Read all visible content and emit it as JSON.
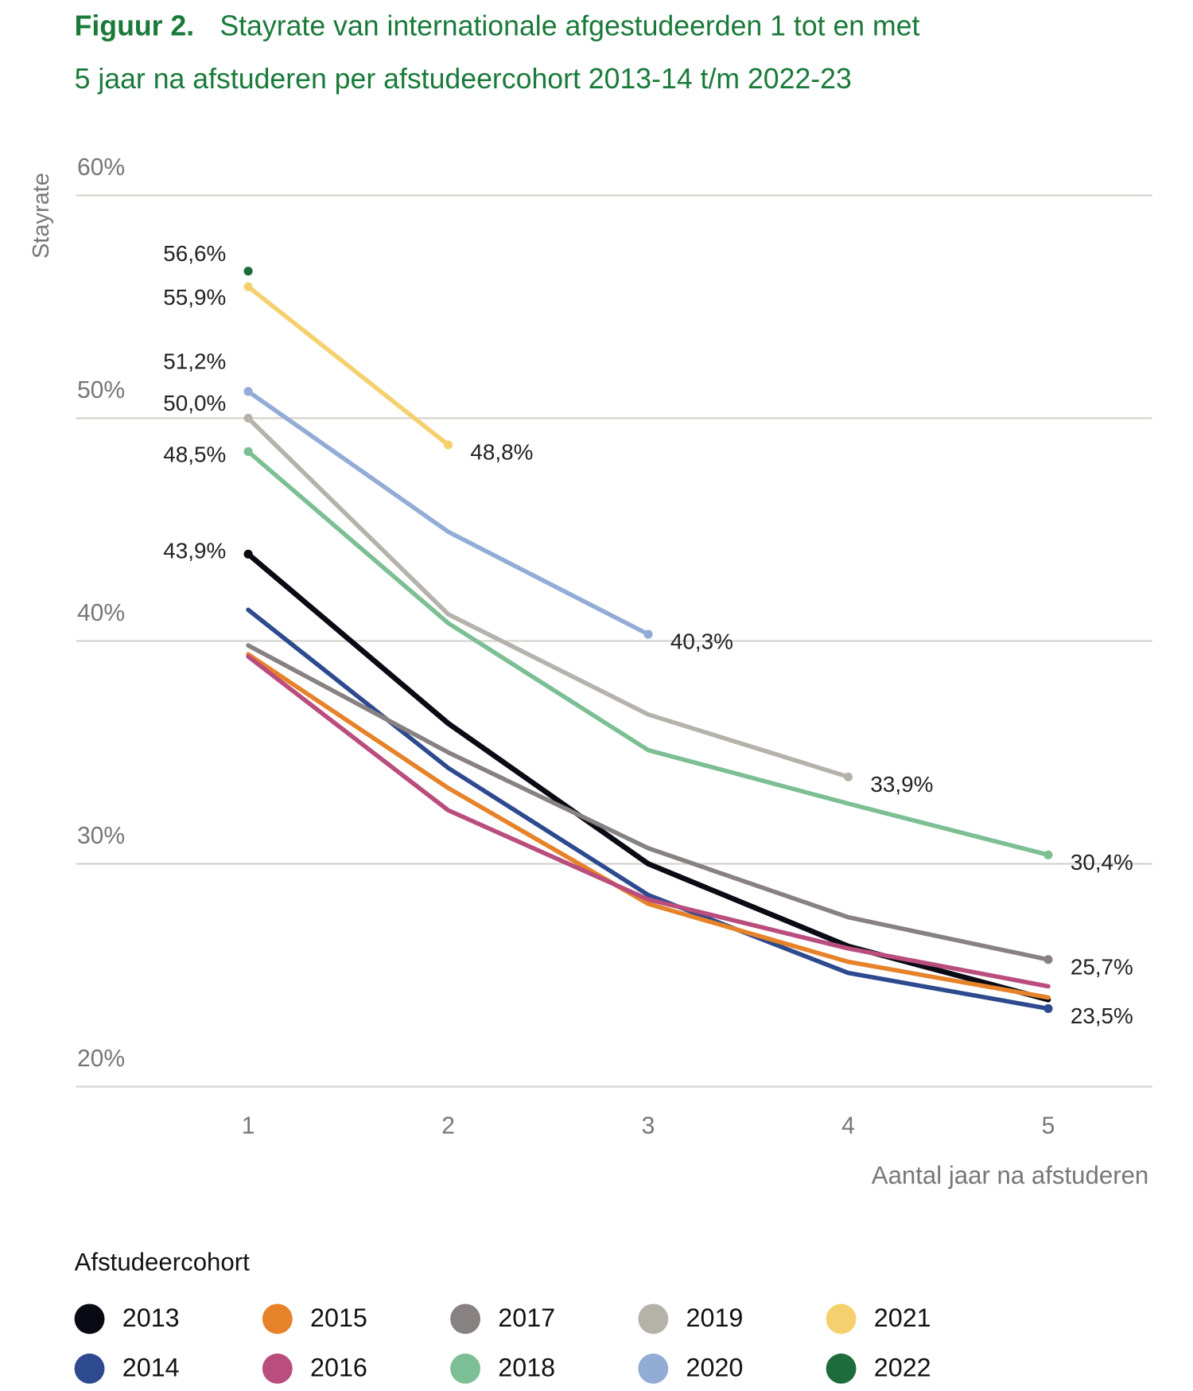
{
  "chart_data": {
    "type": "line",
    "figure_label": "Figuur 2.",
    "title": [
      "Stayrate van internationale afgestudeerden 1 tot en met",
      "5 jaar na afstuderen per afstudeercohort 2013-14 t/m 2022-23"
    ],
    "y_label": "Stayrate",
    "x_label": "Aantal jaar na afstuderen",
    "legend_title": "Afstudeercohort",
    "x": [
      1,
      2,
      3,
      4,
      5
    ],
    "xticks": [
      1,
      2,
      3,
      4,
      5
    ],
    "xlim": [
      0.14,
      5.52
    ],
    "ylim": [
      20,
      60
    ],
    "yticks": [
      {
        "value": 20,
        "label": "20%"
      },
      {
        "value": 30,
        "label": "30%"
      },
      {
        "value": 40,
        "label": "40%"
      },
      {
        "value": 50,
        "label": "50%"
      },
      {
        "value": 60,
        "label": "60%"
      }
    ],
    "grid": true,
    "series": [
      {
        "name": "2013",
        "color": "#0a0a14",
        "values": [
          43.9,
          36.3,
          30.0,
          26.3,
          23.9
        ],
        "value_labels": [
          "43,9%",
          null,
          null,
          null,
          null
        ]
      },
      {
        "name": "2014",
        "color": "#2e4a8e",
        "values": [
          41.4,
          34.3,
          28.6,
          25.1,
          23.5
        ],
        "value_labels": [
          null,
          null,
          null,
          null,
          "23,5%"
        ]
      },
      {
        "name": "2015",
        "color": "#e6822a",
        "values": [
          39.4,
          33.4,
          28.2,
          25.6,
          24.0
        ]
      },
      {
        "name": "2016",
        "color": "#b94d7e",
        "values": [
          39.3,
          32.4,
          28.4,
          26.2,
          24.5
        ]
      },
      {
        "name": "2017",
        "color": "#878281",
        "values": [
          39.8,
          35.0,
          30.7,
          27.6,
          25.7
        ],
        "value_labels": [
          null,
          null,
          null,
          null,
          "25,7%"
        ]
      },
      {
        "name": "2018",
        "color": "#7dbf94",
        "values": [
          48.5,
          40.8,
          35.1,
          32.7,
          30.4
        ],
        "value_labels": [
          "48,5%",
          null,
          null,
          null,
          "30,4%"
        ]
      },
      {
        "name": "2019",
        "color": "#b5b2aa",
        "values": [
          50.0,
          41.2,
          36.7,
          33.9,
          null
        ],
        "value_labels": [
          "50,0%",
          null,
          null,
          "33,9%",
          null
        ]
      },
      {
        "name": "2020",
        "color": "#93acd6",
        "values": [
          51.2,
          44.9,
          40.3,
          null,
          null
        ],
        "value_labels": [
          "51,2%",
          null,
          "40,3%",
          null,
          null
        ]
      },
      {
        "name": "2021",
        "color": "#f4d06f",
        "values": [
          55.9,
          48.8,
          null,
          null,
          null
        ],
        "value_labels": [
          "55,9%",
          "48,8%",
          null,
          null,
          null
        ]
      },
      {
        "name": "2022",
        "color": "#1e6b3c",
        "values": [
          56.6,
          null,
          null,
          null,
          null
        ],
        "value_labels": [
          "56,6%",
          null,
          null,
          null,
          null
        ]
      }
    ]
  }
}
